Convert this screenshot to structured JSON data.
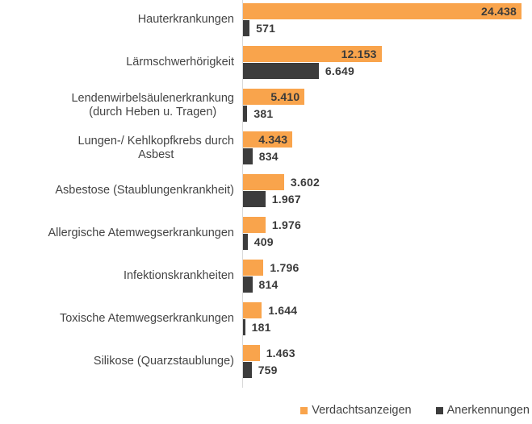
{
  "chart_data": {
    "type": "bar",
    "orientation": "horizontal",
    "title": "",
    "categories": [
      "Hauterkrankungen",
      "Lärmschwerhörigkeit",
      "Lendenwirbelsäulenerkrankung\n(durch Heben u. Tragen)",
      "Lungen-/ Kehlkopfkrebs durch\nAsbest",
      "Asbestose (Staublungenkrankheit)",
      "Allergische Atemwegserkrankungen",
      "Infektionskrankheiten",
      "Toxische Atemwegserkrankungen",
      "Silikose (Quarzstaublunge)"
    ],
    "series": [
      {
        "name": "Verdachtsanzeigen",
        "color": "#F9A44C",
        "values": [
          24438,
          12153,
          5410,
          4343,
          3602,
          1976,
          1796,
          1644,
          1463
        ],
        "labels": [
          "24.438",
          "12.153",
          "5.410",
          "4.343",
          "3.602",
          "1.976",
          "1.796",
          "1.644",
          "1.463"
        ]
      },
      {
        "name": "Anerkennungen",
        "color": "#3C3C3C",
        "values": [
          571,
          6649,
          381,
          834,
          1967,
          409,
          814,
          181,
          759
        ],
        "labels": [
          "571",
          "6.649",
          "381",
          "834",
          "1.967",
          "409",
          "814",
          "181",
          "759"
        ]
      }
    ],
    "value_axis_max": 24438,
    "grid": false,
    "legend_position": "bottom-right",
    "axis_color": "#d9d9d9",
    "text_color": "#444444"
  }
}
